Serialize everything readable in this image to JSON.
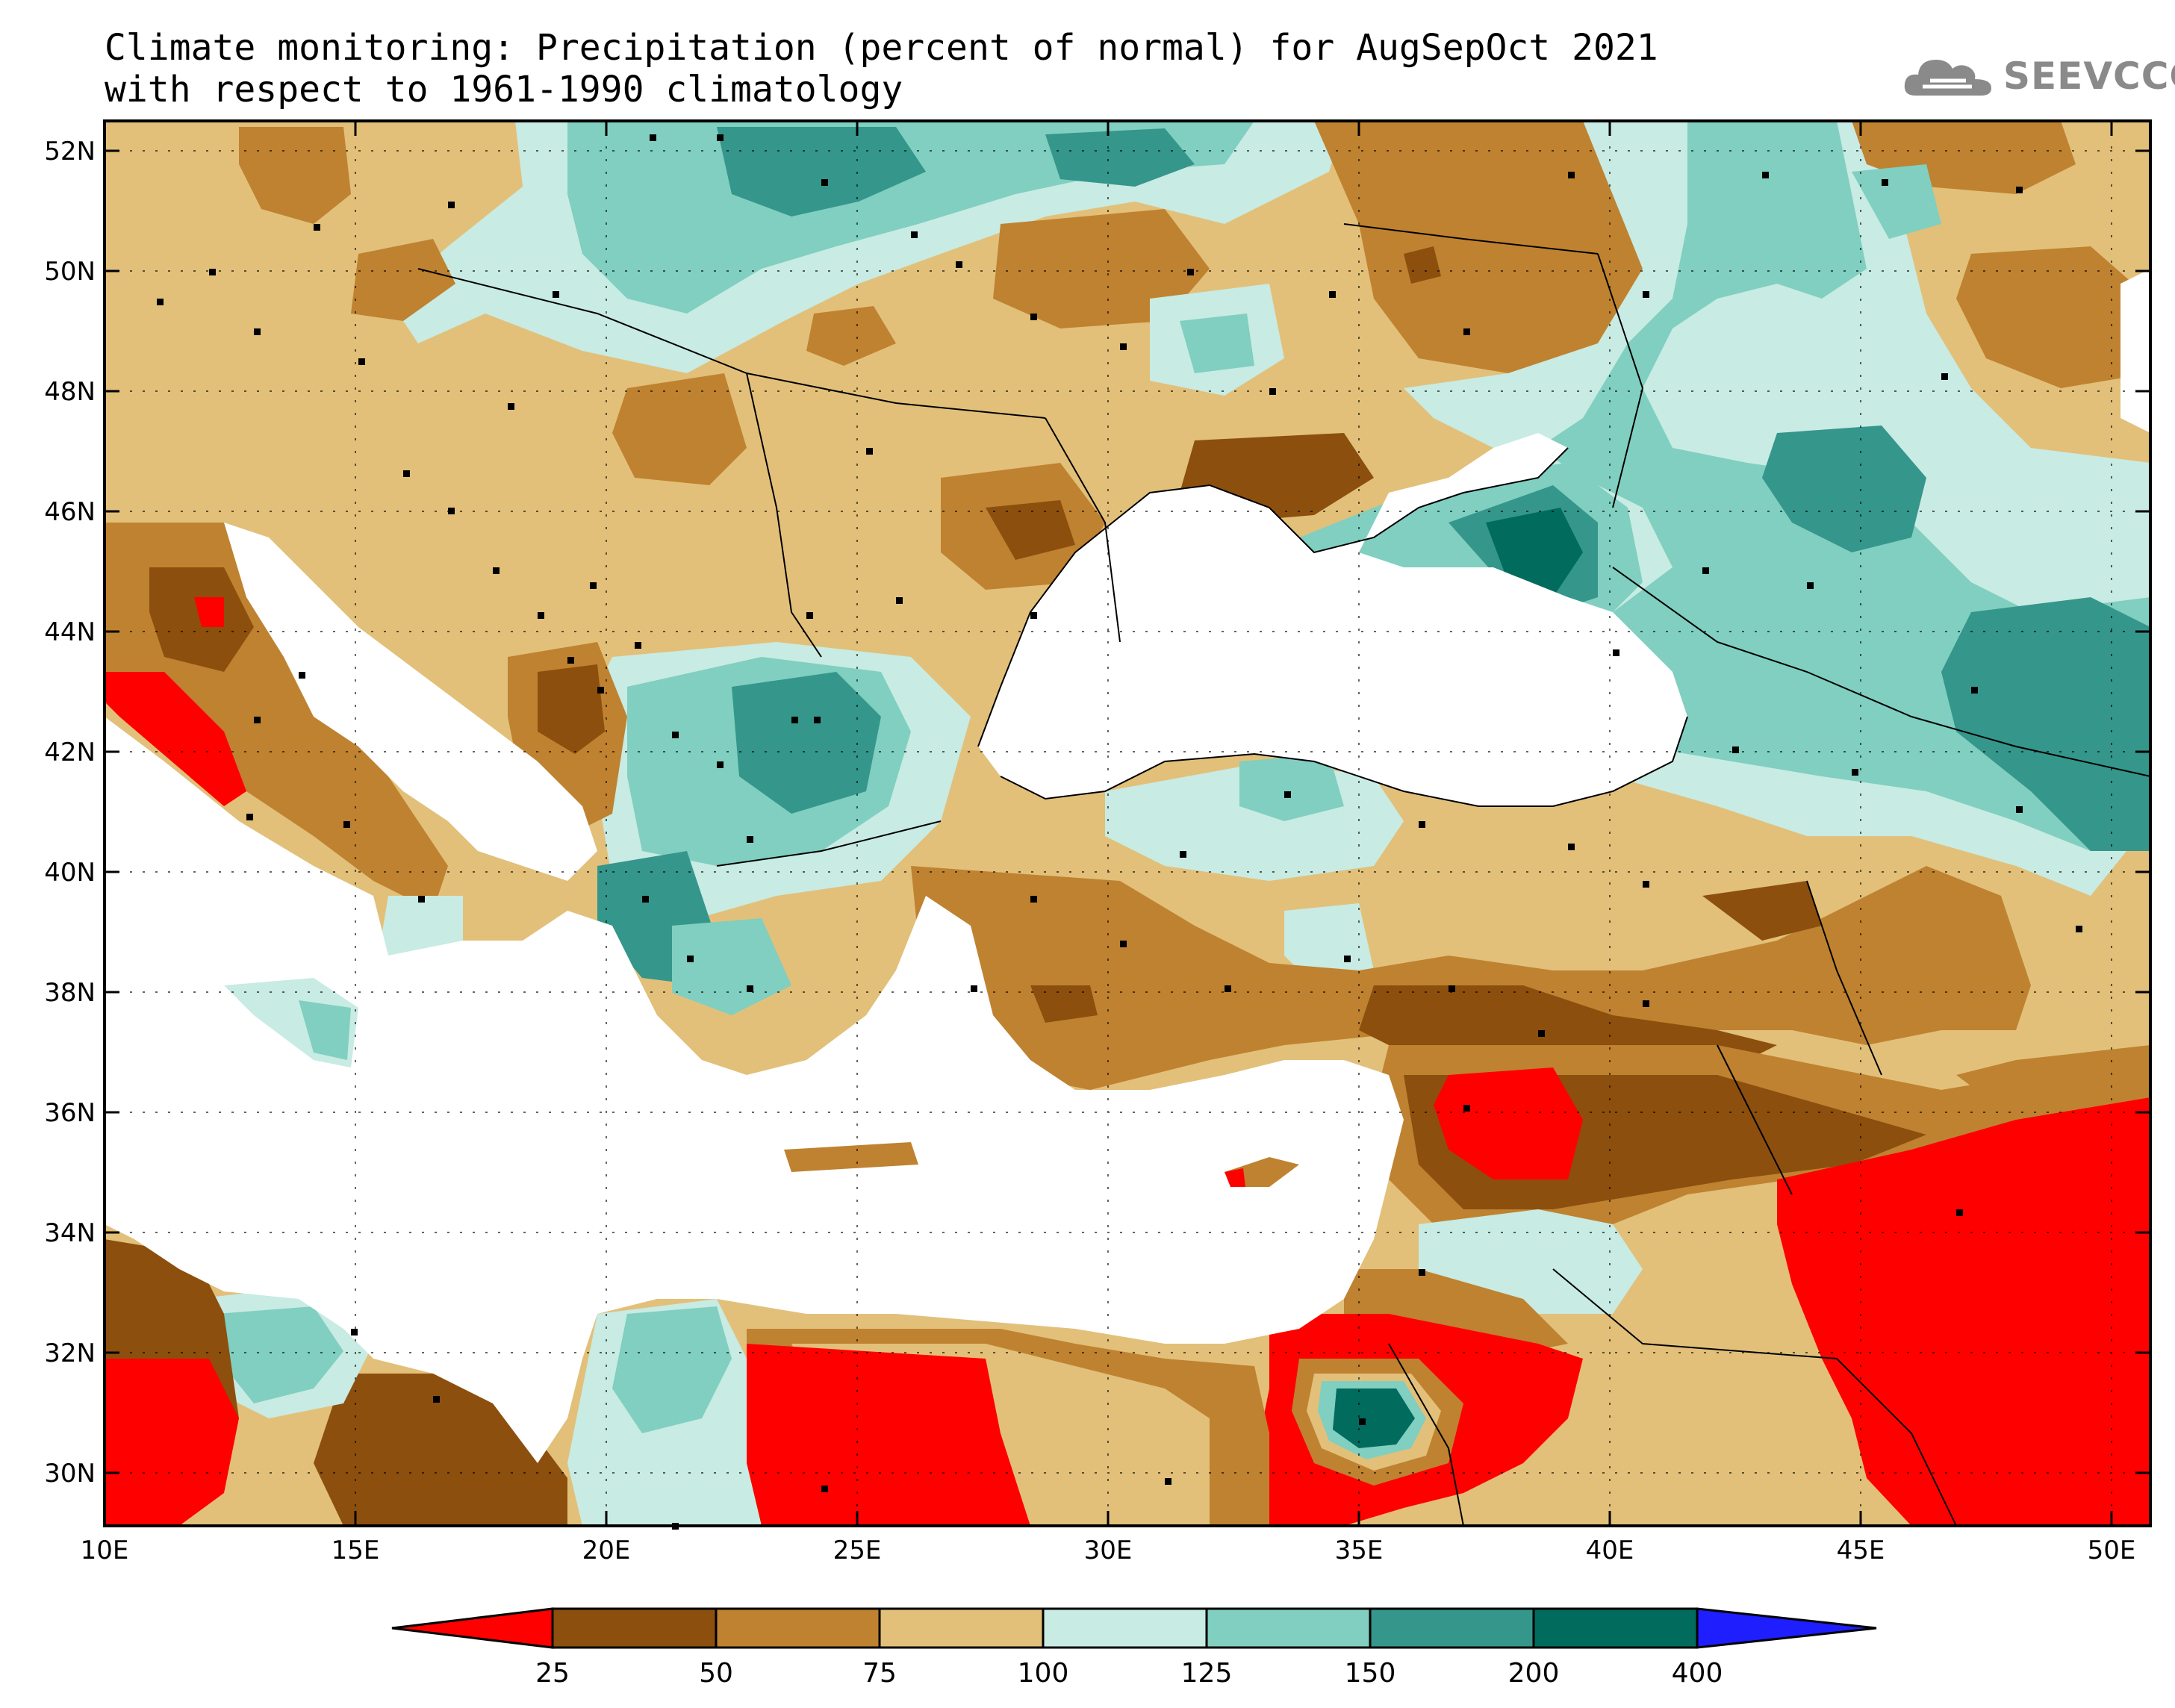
{
  "title_line1": "Climate monitoring: Precipitation (percent of normal) for AugSepOct 2021",
  "title_line2": "with respect to 1961-1990 climatology",
  "logo_text": "SEEVCCC",
  "lat_ticks": [
    "52N",
    "50N",
    "48N",
    "46N",
    "44N",
    "42N",
    "40N",
    "38N",
    "36N",
    "34N",
    "32N",
    "30N"
  ],
  "lon_ticks": [
    "10E",
    "15E",
    "20E",
    "25E",
    "30E",
    "35E",
    "40E",
    "45E",
    "50E"
  ],
  "colorbar": {
    "labels": [
      "25",
      "50",
      "75",
      "100",
      "125",
      "150",
      "200",
      "400"
    ],
    "colors": [
      "#ff0000",
      "#8c4f0e",
      "#bf8230",
      "#e2c07a",
      "#c8ebe3",
      "#80cfc0",
      "#35968b",
      "#016b5e",
      "#1e1eff"
    ]
  },
  "map_colors": {
    "sea": "#ffffff",
    "below25": "#ff0000",
    "p25_50": "#8c4f0e",
    "p50_75": "#bf8230",
    "p75_100": "#e2c07a",
    "p100_125": "#c8ebe3",
    "p125_150": "#80cfc0",
    "p150_200": "#35968b",
    "p200_400": "#016b5e"
  }
}
